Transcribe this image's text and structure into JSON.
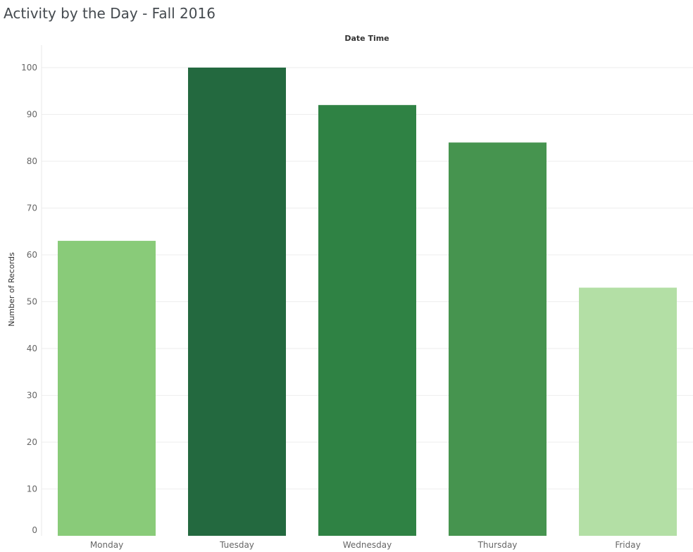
{
  "page": {
    "title": "Activity by the Day - Fall 2016"
  },
  "chart_data": {
    "type": "bar",
    "title": "Activity by the Day - Fall 2016",
    "column_header": "Date Time",
    "xlabel": "",
    "ylabel": "Number of Records",
    "categories": [
      "Monday",
      "Tuesday",
      "Wednesday",
      "Thursday",
      "Friday"
    ],
    "values": [
      63,
      100,
      92,
      84,
      53
    ],
    "colors": [
      "#89cb79",
      "#23693f",
      "#2f8244",
      "#46944f",
      "#b3dfa5"
    ],
    "ylim": [
      0,
      105
    ],
    "yticks": [
      0,
      10,
      20,
      30,
      40,
      50,
      60,
      70,
      80,
      90,
      100
    ],
    "grid": true,
    "legend": "none"
  }
}
